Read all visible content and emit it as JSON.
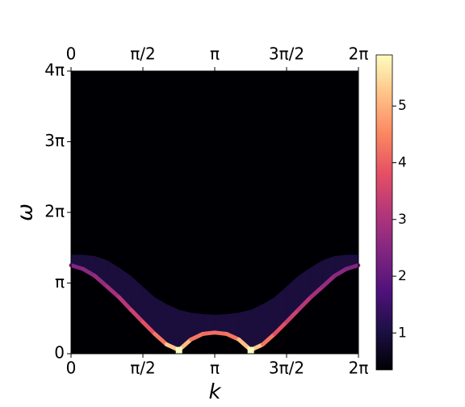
{
  "chart_data": {
    "type": "heatmap",
    "xlabel": "k",
    "ylabel": "ω",
    "xlim": [
      0,
      6.2832
    ],
    "ylim": [
      0,
      12.566
    ],
    "xticks": [
      0,
      {
        "value": 1.5708,
        "label": "π/2"
      },
      {
        "value": 3.1416,
        "label": "π"
      },
      {
        "value": 4.7124,
        "label": "3π/2"
      },
      {
        "value": 6.2832,
        "label": "2π"
      }
    ],
    "yticks": [
      0,
      {
        "value": 3.1416,
        "label": "π"
      },
      {
        "value": 6.2832,
        "label": "2π"
      },
      {
        "value": 9.4248,
        "label": "3π"
      },
      {
        "value": 12.566,
        "label": "4π"
      }
    ],
    "colormap": "magma",
    "clim": [
      0.35,
      5.9
    ],
    "cticks": [
      1,
      2,
      3,
      4,
      5
    ],
    "x": [
      0,
      0.26,
      0.52,
      0.79,
      1.05,
      1.31,
      1.57,
      1.83,
      2.09,
      2.36,
      2.62,
      2.88,
      3.14,
      3.4,
      3.67,
      3.93,
      4.19,
      4.45,
      4.71,
      4.97,
      5.24,
      5.5,
      5.76,
      6.02,
      6.28
    ],
    "peak": [
      3.93,
      3.77,
      3.46,
      2.98,
      2.51,
      1.95,
      1.41,
      0.88,
      0.41,
      0.16,
      0.63,
      0.88,
      0.94,
      0.88,
      0.63,
      0.16,
      0.41,
      0.88,
      1.41,
      1.95,
      2.51,
      2.98,
      3.46,
      3.77,
      3.93
    ],
    "peak_intensity": [
      2.4,
      2.5,
      2.6,
      2.8,
      3.0,
      3.3,
      3.6,
      4.0,
      4.6,
      5.9,
      4.4,
      4.2,
      4.2,
      4.2,
      4.4,
      5.9,
      4.6,
      4.0,
      3.6,
      3.3,
      3.0,
      2.8,
      2.6,
      2.5,
      2.4
    ],
    "edge": [
      4.4,
      4.4,
      4.34,
      4.15,
      3.83,
      3.46,
      2.98,
      2.51,
      2.2,
      1.95,
      1.82,
      1.76,
      1.73,
      1.76,
      1.82,
      1.95,
      2.2,
      2.51,
      2.98,
      3.46,
      3.83,
      4.15,
      4.34,
      4.4,
      4.4
    ],
    "edge_intensity": 1.1
  }
}
